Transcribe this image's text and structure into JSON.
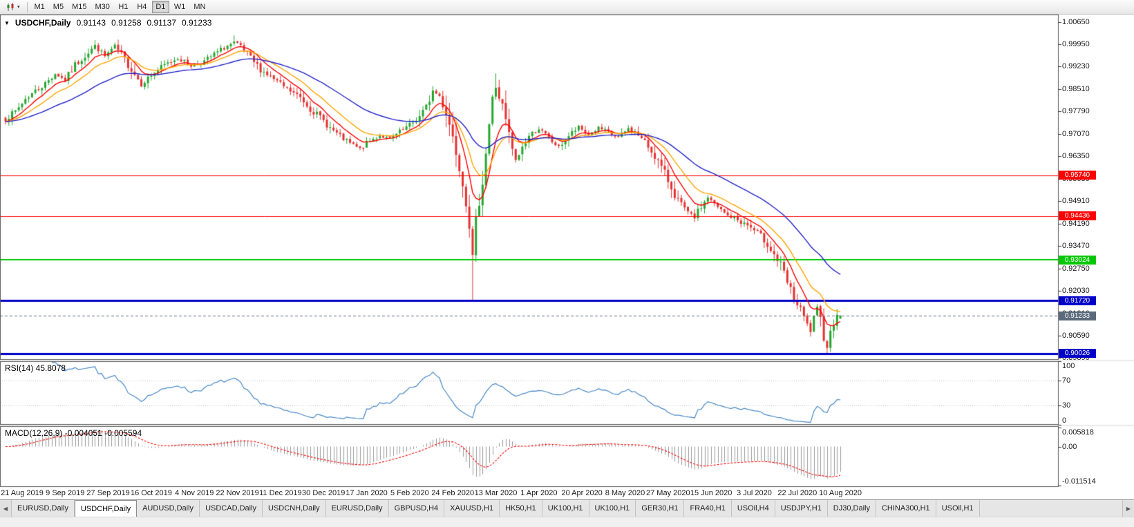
{
  "toolbar": {
    "chart_type_tooltip": "Charts",
    "timeframes": [
      {
        "label": "M1",
        "active": false
      },
      {
        "label": "M5",
        "active": false
      },
      {
        "label": "M15",
        "active": false
      },
      {
        "label": "M30",
        "active": false
      },
      {
        "label": "H1",
        "active": false
      },
      {
        "label": "H4",
        "active": false
      },
      {
        "label": "D1",
        "active": true
      },
      {
        "label": "W1",
        "active": false
      },
      {
        "label": "MN",
        "active": false
      }
    ]
  },
  "chart_header": {
    "symbol": "USDCHF,Daily",
    "open": "0.91143",
    "high": "0.91258",
    "low": "0.91137",
    "close": "0.91233"
  },
  "chart_data": {
    "type": "candlestick",
    "symbol": "USDCHF",
    "timeframe": "Daily",
    "last_ohlc": {
      "open": 0.91143,
      "high": 0.91258,
      "low": 0.91137,
      "close": 0.91233
    },
    "price_axis": {
      "min": 0.8982,
      "max": 1.009,
      "ticks": [
        "1.00650",
        "0.99950",
        "0.99230",
        "0.98510",
        "0.97790",
        "0.97070",
        "0.96350",
        "0.95630",
        "0.94910",
        "0.94190",
        "0.93470",
        "0.92750",
        "0.92030",
        "0.91310",
        "0.90590",
        "0.89890"
      ]
    },
    "x_axis": {
      "labels": [
        "21 Aug 2019",
        "9 Sep 2019",
        "27 Sep 2019",
        "16 Oct 2019",
        "4 Nov 2019",
        "22 Nov 2019",
        "11 Dec 2019",
        "30 Dec 2019",
        "17 Jan 2020",
        "5 Feb 2020",
        "24 Feb 2020",
        "13 Mar 2020",
        "1 Apr 2020",
        "20 Apr 2020",
        "8 May 2020",
        "27 May 2020",
        "15 Jun 2020",
        "3 Jul 2020",
        "22 Jul 2020",
        "10 Aug 2020"
      ],
      "bars_per_label": 13,
      "first_label_bar": 5
    },
    "candles": {
      "count": 253,
      "seed": 7,
      "bull_color": "#23A62E",
      "bear_color": "#E63030",
      "anchors": [
        [
          0,
          0.9755
        ],
        [
          3,
          0.9778
        ],
        [
          6,
          0.982
        ],
        [
          9,
          0.9845
        ],
        [
          12,
          0.9868
        ],
        [
          15,
          0.99
        ],
        [
          18,
          0.988
        ],
        [
          21,
          0.9928
        ],
        [
          24,
          0.9958
        ],
        [
          27,
          0.999
        ],
        [
          30,
          0.9956
        ],
        [
          33,
          0.9988
        ],
        [
          36,
          0.9945
        ],
        [
          39,
          0.99
        ],
        [
          41,
          0.9866
        ],
        [
          44,
          0.9896
        ],
        [
          48,
          0.9928
        ],
        [
          52,
          0.995
        ],
        [
          56,
          0.9926
        ],
        [
          60,
          0.994
        ],
        [
          63,
          0.9962
        ],
        [
          66,
          0.9984
        ],
        [
          69,
          0.9999
        ],
        [
          71,
          0.9986
        ],
        [
          74,
          0.9948
        ],
        [
          77,
          0.9914
        ],
        [
          80,
          0.989
        ],
        [
          83,
          0.9866
        ],
        [
          86,
          0.9844
        ],
        [
          89,
          0.9824
        ],
        [
          92,
          0.9788
        ],
        [
          95,
          0.976
        ],
        [
          98,
          0.9726
        ],
        [
          101,
          0.9698
        ],
        [
          104,
          0.9676
        ],
        [
          107,
          0.9658
        ],
        [
          110,
          0.9684
        ],
        [
          113,
          0.9702
        ],
        [
          116,
          0.969
        ],
        [
          119,
          0.9712
        ],
        [
          122,
          0.9734
        ],
        [
          125,
          0.9762
        ],
        [
          127,
          0.979
        ],
        [
          129,
          0.9845
        ],
        [
          131,
          0.9828
        ],
        [
          133,
          0.9778
        ],
        [
          135,
          0.97
        ],
        [
          137,
          0.9612
        ],
        [
          139,
          0.9498
        ],
        [
          140,
          0.942
        ],
        [
          141,
          0.9315
        ],
        [
          142,
          0.942
        ],
        [
          143,
          0.9498
        ],
        [
          144,
          0.956
        ],
        [
          145,
          0.9648
        ],
        [
          146,
          0.9738
        ],
        [
          147,
          0.9815
        ],
        [
          148,
          0.9858
        ],
        [
          150,
          0.979
        ],
        [
          152,
          0.9698
        ],
        [
          154,
          0.9618
        ],
        [
          156,
          0.9664
        ],
        [
          158,
          0.97
        ],
        [
          161,
          0.9724
        ],
        [
          164,
          0.969
        ],
        [
          167,
          0.9664
        ],
        [
          170,
          0.97
        ],
        [
          173,
          0.9728
        ],
        [
          176,
          0.9704
        ],
        [
          179,
          0.9726
        ],
        [
          182,
          0.971
        ],
        [
          185,
          0.9694
        ],
        [
          188,
          0.9724
        ],
        [
          191,
          0.9704
        ],
        [
          194,
          0.9666
        ],
        [
          196,
          0.9638
        ],
        [
          198,
          0.9598
        ],
        [
          200,
          0.9558
        ],
        [
          202,
          0.9514
        ],
        [
          204,
          0.9477
        ],
        [
          206,
          0.9452
        ],
        [
          208,
          0.944
        ],
        [
          210,
          0.9474
        ],
        [
          212,
          0.9504
        ],
        [
          214,
          0.9479
        ],
        [
          216,
          0.9461
        ],
        [
          218,
          0.9444
        ],
        [
          220,
          0.9437
        ],
        [
          222,
          0.9424
        ],
        [
          224,
          0.9414
        ],
        [
          226,
          0.9397
        ],
        [
          228,
          0.9379
        ],
        [
          230,
          0.9354
        ],
        [
          232,
          0.932
        ],
        [
          234,
          0.9284
        ],
        [
          236,
          0.9228
        ],
        [
          238,
          0.9176
        ],
        [
          240,
          0.9139
        ],
        [
          242,
          0.9094
        ],
        [
          243,
          0.9074
        ],
        [
          244,
          0.9118
        ],
        [
          245,
          0.9146
        ],
        [
          246,
          0.9108
        ],
        [
          247,
          0.9058
        ],
        [
          248,
          0.9024
        ],
        [
          249,
          0.9068
        ],
        [
          250,
          0.9104
        ],
        [
          251,
          0.9138
        ],
        [
          252,
          0.9123
        ]
      ],
      "forced_highs": [
        [
          27,
          1.0008
        ],
        [
          69,
          1.0023
        ],
        [
          148,
          0.9901
        ]
      ],
      "forced_lows": [
        [
          141,
          0.91715
        ],
        [
          248,
          0.9002
        ]
      ]
    },
    "moving_averages": [
      {
        "name": "fast-ma",
        "period": 8,
        "color": "#FF0000"
      },
      {
        "name": "mid-ma",
        "period": 16,
        "color": "#FFA500"
      },
      {
        "name": "slow-ma",
        "period": 40,
        "color": "#2323CC"
      }
    ],
    "hlines": [
      {
        "price": 0.9574,
        "label": "0.95740",
        "color": "#FF0000",
        "width": 1
      },
      {
        "price": 0.94436,
        "label": "0.94436",
        "color": "#FF0000",
        "width": 1
      },
      {
        "price": 0.93024,
        "label": "0.93024",
        "color": "#00C800",
        "width": 2
      },
      {
        "price": 0.9172,
        "label": "0.91720",
        "color": "#0000C8",
        "width": 3
      },
      {
        "price": 0.90026,
        "label": "0.90026",
        "color": "#0000C8",
        "width": 3
      }
    ],
    "current_price": {
      "value": 0.91233,
      "label": "0.91233",
      "color": "#5A6A7A"
    },
    "rsi": {
      "label": "RSI(14) 45.8078",
      "period": 14,
      "color": "#4788C7",
      "levels": [
        70,
        30
      ],
      "ticks": [
        {
          "v": 100,
          "label": "100"
        },
        {
          "v": 70,
          "label": "70"
        },
        {
          "v": 30,
          "label": "30"
        },
        {
          "v": 0,
          "label": "0"
        }
      ]
    },
    "macd": {
      "label": "MACD(12,26,9) -0.004051 -0.005594",
      "fast": 12,
      "slow": 26,
      "signal": 9,
      "max": 0.005818,
      "min": -0.011514,
      "hist_color": "#9A9A9A",
      "signal_color": "#FF0000",
      "ticks": [
        {
          "pos": "top",
          "label": "0.005818"
        },
        {
          "pos": "zero",
          "label": "0.00"
        },
        {
          "pos": "bottom",
          "label": "-0.011514"
        }
      ]
    }
  },
  "tabs": {
    "left_arrow": "◀",
    "right_arrow": "▶",
    "items": [
      {
        "label": "EURUSD,Daily",
        "active": false
      },
      {
        "label": "USDCHF,Daily",
        "active": true
      },
      {
        "label": "AUDUSD,Daily",
        "active": false
      },
      {
        "label": "USDCAD,Daily",
        "active": false
      },
      {
        "label": "USDCNH,Daily",
        "active": false
      },
      {
        "label": "EURUSD,Daily",
        "active": false
      },
      {
        "label": "GBPUSD,H4",
        "active": false
      },
      {
        "label": "XAUUSD,H1",
        "active": false
      },
      {
        "label": "HK50,H1",
        "active": false
      },
      {
        "label": "UK100,H1",
        "active": false
      },
      {
        "label": "UK100,H1",
        "active": false
      },
      {
        "label": "GER30,H1",
        "active": false
      },
      {
        "label": "FRA40,H1",
        "active": false
      },
      {
        "label": "USOil,H4",
        "active": false
      },
      {
        "label": "USDJPY,H1",
        "active": false
      },
      {
        "label": "DJ30,Daily",
        "active": false
      },
      {
        "label": "CHINA300,H1",
        "active": false
      },
      {
        "label": "USOil,H1",
        "active": false
      }
    ]
  }
}
